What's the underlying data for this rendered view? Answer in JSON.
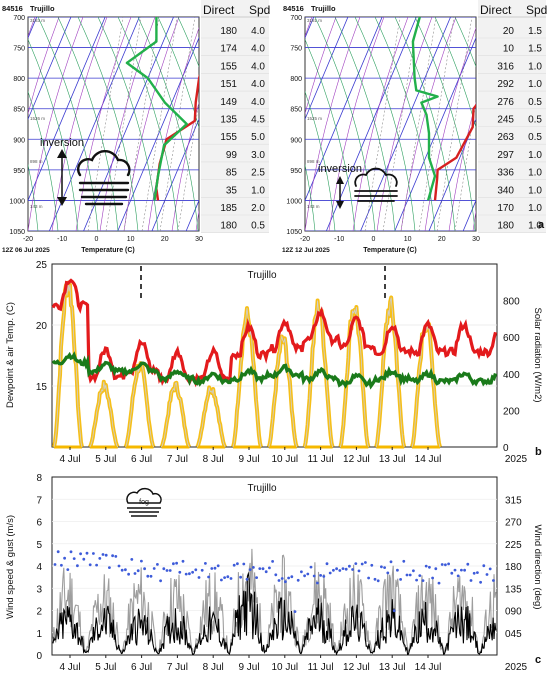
{
  "panel_a": {
    "left": {
      "station": "84516",
      "site": "Trujillo",
      "date_label": "12Z 06 Jul 2025",
      "xlabel": "Temperature (C)",
      "annotation": "inversion",
      "pressure_ticks": [
        "700",
        "750",
        "800",
        "850",
        "900",
        "950",
        "1000",
        "1050"
      ],
      "temp_ticks": [
        "-20",
        "-10",
        "0",
        "10",
        "20",
        "30"
      ],
      "height_labels": [
        "3183 m",
        "1526 m",
        "898 m",
        "143 m"
      ],
      "table_headers": [
        "Direct",
        "Spd"
      ],
      "table_rows": [
        [
          "180",
          "4.0"
        ],
        [
          "174",
          "4.0"
        ],
        [
          "155",
          "4.0"
        ],
        [
          "151",
          "4.0"
        ],
        [
          "149",
          "4.0"
        ],
        [
          "135",
          "4.5"
        ],
        [
          "155",
          "5.0"
        ],
        [
          "99",
          "3.0"
        ],
        [
          "85",
          "2.5"
        ],
        [
          "35",
          "1.0"
        ],
        [
          "185",
          "2.0"
        ],
        [
          "180",
          "0.5"
        ]
      ]
    },
    "right": {
      "station": "84516",
      "site": "Trujillo",
      "date_label": "12Z 12 Jul 2025",
      "xlabel": "Temperature (C)",
      "annotation": "inversion",
      "pressure_ticks": [
        "700",
        "750",
        "800",
        "850",
        "900",
        "950",
        "1000",
        "1050"
      ],
      "temp_ticks": [
        "-20",
        "-10",
        "0",
        "10",
        "20",
        "30"
      ],
      "height_labels": [
        "3181 m",
        "1525 m",
        "898 m",
        "143 m"
      ],
      "table_headers": [
        "Direct",
        "Spd"
      ],
      "table_rows": [
        [
          "20",
          "1.5"
        ],
        [
          "10",
          "1.5"
        ],
        [
          "316",
          "1.0"
        ],
        [
          "292",
          "1.0"
        ],
        [
          "276",
          "0.5"
        ],
        [
          "245",
          "0.5"
        ],
        [
          "263",
          "0.5"
        ],
        [
          "297",
          "1.0"
        ],
        [
          "336",
          "1.0"
        ],
        [
          "340",
          "1.0"
        ],
        [
          "170",
          "1.0"
        ],
        [
          "180",
          "1.0"
        ]
      ]
    },
    "panel_label": "a"
  },
  "panel_b": {
    "title": "Trujillo",
    "ylabel_left": "Dewpoint & air Temp. (C)",
    "ylabel_right": "Solar radiation (W/m2)",
    "yticks_left": [
      "25",
      "20",
      "15"
    ],
    "yticks_right": [
      "800",
      "600",
      "400",
      "200",
      "0"
    ],
    "xticks": [
      "4 Jul",
      "5 Jul",
      "6 Jul",
      "7 Jul",
      "8 Jul",
      "9 Jul",
      "10 Jul",
      "11 Jul",
      "12 Jul",
      "13 Jul",
      "14 Jul"
    ],
    "xyear": "2025",
    "panel_label": "b"
  },
  "panel_c": {
    "title": "Trujillo",
    "ylabel_left": "Wind speed & gust (m/s)",
    "ylabel_right": "Wind direction (deg)",
    "yticks_left": [
      "8",
      "7",
      "6",
      "5",
      "4",
      "3",
      "2",
      "1",
      "0"
    ],
    "yticks_right": [
      "315",
      "270",
      "225",
      "180",
      "135",
      "090",
      "045"
    ],
    "xticks": [
      "4 Jul",
      "5 Jul",
      "6 Jul",
      "7 Jul",
      "8 Jul",
      "9 Jul",
      "10 Jul",
      "11 Jul",
      "12 Jul",
      "13 Jul",
      "14 Jul"
    ],
    "xyear": "2025",
    "fog_label": "fog",
    "panel_label": "c"
  },
  "colors": {
    "temperature": "#e31a1c",
    "dewpoint": "#1a7a1a",
    "solar": "#f5b800",
    "gust": "#9e9e9e",
    "speed": "#000000",
    "direction": "#3d5bd9",
    "sounding_temp": "#d62020",
    "sounding_dew": "#22b04b"
  },
  "chart_data": [
    {
      "type": "line",
      "title": "Trujillo 12Z 06 Jul 2025 sounding",
      "xlabel": "Temperature (C)",
      "ylabel": "",
      "xlim": [
        -20,
        30
      ],
      "ylim": [
        1050,
        700
      ],
      "series": [
        {
          "name": "",
          "points": [
            [
              18,
              1000
            ],
            [
              16,
              980
            ],
            [
              14,
              940
            ],
            [
              13,
              900
            ],
            [
              19,
              870
            ],
            [
              17,
              840
            ],
            [
              15,
              800
            ],
            [
              14,
              760
            ],
            [
              12,
              700
            ]
          ]
        },
        {
          "name": "",
          "points": [
            [
              17,
              1000
            ],
            [
              15,
              960
            ],
            [
              13,
              910
            ],
            [
              17,
              875
            ],
            [
              8,
              840
            ],
            [
              0,
              800
            ],
            [
              -8,
              775
            ],
            [
              -2,
              740
            ],
            [
              -5,
              700
            ]
          ]
        }
      ],
      "wind_table": {
        "pressure": [
          700,
          725,
          750,
          775,
          800,
          825,
          850,
          875,
          900,
          925,
          950,
          975
        ],
        "direction": [
          180,
          174,
          155,
          151,
          149,
          135,
          155,
          99,
          85,
          35,
          185,
          180
        ],
        "speed": [
          4.0,
          4.0,
          4.0,
          4.0,
          4.0,
          4.5,
          5.0,
          3.0,
          2.5,
          1.0,
          2.0,
          0.5
        ]
      }
    },
    {
      "type": "line",
      "title": "Trujillo 12Z 12 Jul 2025 sounding",
      "xlabel": "Temperature (C)",
      "ylabel": "",
      "xlim": [
        -20,
        30
      ],
      "ylim": [
        1050,
        700
      ],
      "series": [
        {
          "name": "",
          "points": [
            [
              18,
              1000
            ],
            [
              16,
              965
            ],
            [
              15,
              950
            ],
            [
              19,
              930
            ],
            [
              20,
              880
            ],
            [
              18,
              850
            ],
            [
              20,
              820
            ],
            [
              17,
              780
            ],
            [
              15,
              740
            ],
            [
              11,
              700
            ]
          ]
        },
        {
          "name": "",
          "points": [
            [
              16,
              1000
            ],
            [
              15,
              960
            ],
            [
              11,
              930
            ],
            [
              8,
              890
            ],
            [
              5,
              860
            ],
            [
              2,
              840
            ],
            [
              6,
              830
            ],
            [
              -1,
              820
            ],
            [
              -3,
              800
            ],
            [
              -8,
              740
            ],
            [
              -9,
              700
            ]
          ]
        }
      ],
      "wind_table": {
        "pressure": [
          700,
          725,
          750,
          775,
          800,
          825,
          850,
          875,
          900,
          925,
          950,
          975
        ],
        "direction": [
          20,
          10,
          316,
          292,
          276,
          245,
          263,
          297,
          336,
          340,
          170,
          180
        ],
        "speed": [
          1.5,
          1.5,
          1.0,
          1.0,
          0.5,
          0.5,
          0.5,
          1.0,
          1.0,
          1.0,
          1.0,
          1.0
        ]
      }
    },
    {
      "type": "line",
      "title": "Trujillo",
      "xlabel": "",
      "ylabel": "Dewpoint & air Temp. (C)",
      "x": [
        "4 Jul",
        "5 Jul",
        "6 Jul",
        "7 Jul",
        "8 Jul",
        "9 Jul",
        "10 Jul",
        "11 Jul",
        "12 Jul",
        "13 Jul",
        "14 Jul"
      ],
      "ylim": [
        10,
        25
      ],
      "y2lim": [
        0,
        1000
      ],
      "series": [
        {
          "name": "",
          "values": [
            23.8,
            18.0,
            18.5,
            17.8,
            17.8,
            19.8,
            20.3,
            21.0,
            20.5,
            20.0,
            20.0
          ]
        },
        {
          "name": "",
          "values": [
            17.5,
            16.8,
            16.8,
            16.2,
            16.0,
            16.2,
            16.5,
            16.2,
            15.8,
            16.2,
            16.0
          ]
        },
        {
          "name": "",
          "axis": "right",
          "values": [
            970,
            360,
            480,
            360,
            350,
            770,
            630,
            830,
            830,
            830,
            740
          ]
        }
      ]
    },
    {
      "type": "line",
      "title": "Trujillo",
      "xlabel": "",
      "ylabel": "Wind speed & gust (m/s)",
      "x": [
        "4 Jul",
        "5 Jul",
        "6 Jul",
        "7 Jul",
        "8 Jul",
        "9 Jul",
        "10 Jul",
        "11 Jul",
        "12 Jul",
        "13 Jul",
        "14 Jul"
      ],
      "ylim": [
        0,
        8
      ],
      "y2lim": [
        0,
        360
      ],
      "series": [
        {
          "name": "",
          "values": [
            4.4,
            4.0,
            4.2,
            4.1,
            4.0,
            5.5,
            4.5,
            4.7,
            4.2,
            4.5,
            4.3
          ]
        },
        {
          "name": "",
          "values": [
            3.0,
            2.8,
            2.6,
            2.8,
            2.6,
            4.5,
            3.2,
            3.2,
            2.8,
            3.0,
            3.0
          ]
        },
        {
          "name": "",
          "axis": "right",
          "values": [
            190,
            190,
            175,
            170,
            170,
            170,
            170,
            165,
            170,
            170,
            165
          ]
        }
      ]
    }
  ]
}
